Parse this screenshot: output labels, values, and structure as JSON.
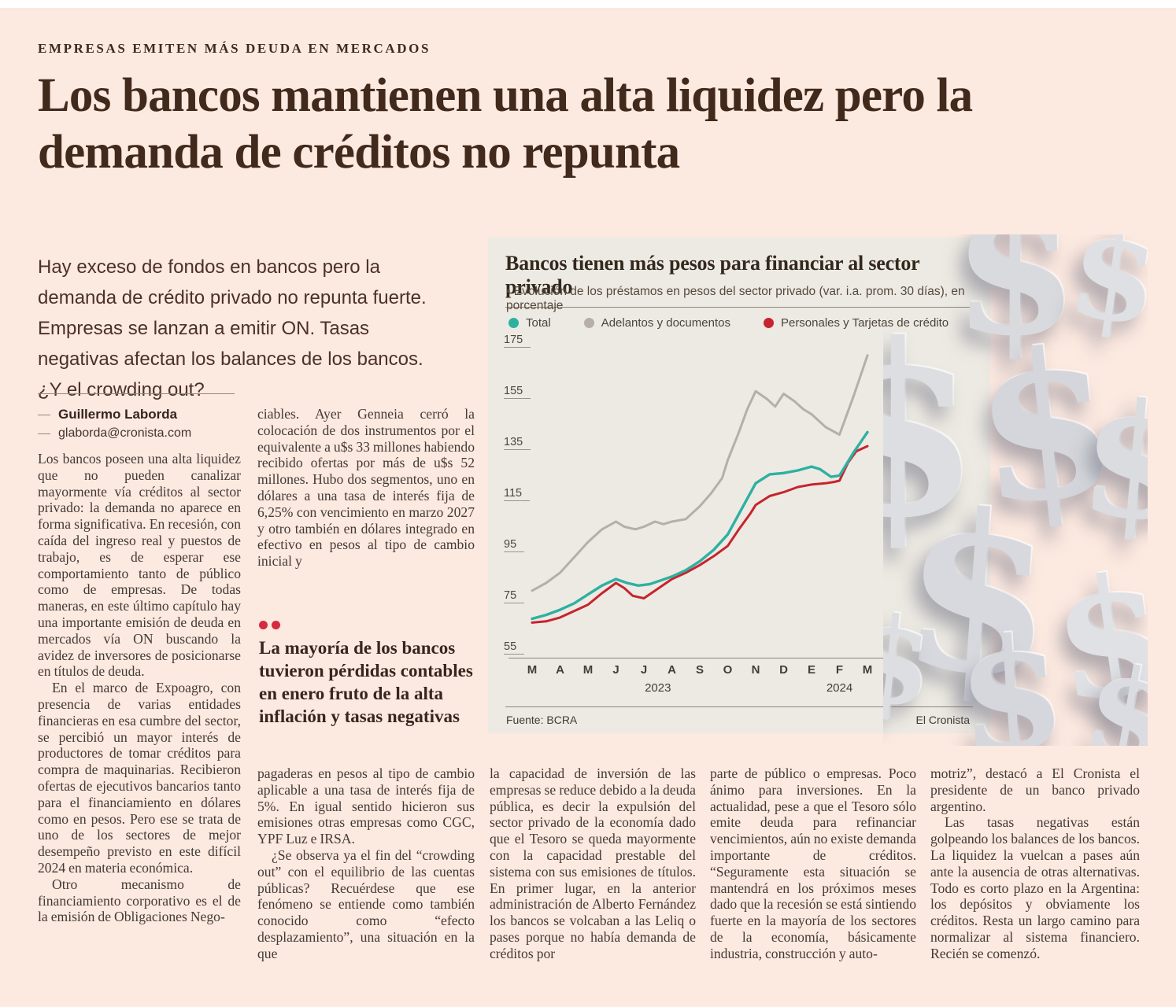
{
  "masthead": {
    "kicker": "EMPRESAS EMITEN MÁS DEUDA EN MERCADOS"
  },
  "headline": "Los bancos mantienen una alta liquidez pero la demanda de créditos no repunta",
  "lede": "Hay exceso de fondos en bancos pero la demanda de crédito privado no repunta fuerte. Empresas se lanzan a emitir ON. Tasas negativas afectan los balances de los bancos. ¿Y el crowding out?",
  "byline": {
    "author": "Guillermo Laborda",
    "email": "glaborda@cronista.com"
  },
  "article": {
    "col1_p1": "Los bancos poseen una alta liquidez que no pueden canalizar mayormente vía créditos al sector privado: la demanda no aparece en forma significativa. En recesión, con caída del ingreso real y puestos de trabajo, es de esperar ese comportamiento tanto de público como de empresas. De todas maneras, en este último capítulo hay una importante emisión de deuda en mercados vía ON buscando la avidez de inversores de posicionarse en títulos de deuda.",
    "col1_p2": "En el marco de Expoagro, con presencia de varias entidades financieras en esa cumbre del sector, se percibió un mayor interés de productores de tomar créditos para compra de maquinarias. Recibieron ofertas de ejecutivos bancarios tanto para el financiamiento en dólares como en pesos. Pero ese se trata de uno de los sectores de mejor desempeño previsto en este difícil 2024 en materia económica.",
    "col1_p3": "Otro mecanismo de financiamiento corporativo es el de la emisión de Obligaciones Nego-",
    "col2_top": "ciables. Ayer Genneia cerró la colocación de dos instrumentos por el equivalente a u$s 33 millones habiendo recibido ofertas por más de u$s 52 millones. Hubo dos segmentos, uno en dólares a una tasa de interés fija de 6,25% con vencimiento en marzo 2027 y otro también en dólares integrado en efectivo en pesos al tipo de cambio inicial y",
    "pull_quote": "La mayoría de los bancos tuvieron pérdidas contables en enero fruto de la alta inflación y tasas negativas",
    "col2_p1": "pagaderas en pesos al tipo de cambio aplicable a una tasa de interés fija de 5%. En igual sentido hicieron sus emisiones otras empresas como CGC, YPF Luz e IRSA.",
    "col2_p2": "¿Se observa ya el fin del “crowding out” con el equilibrio de las cuentas públicas? Recuérdese que ese fenómeno se entiende como también conocido como “efecto desplazamiento”, una situación en la que",
    "col3": "la capacidad de inversión de las empresas se reduce debido a la deuda pública, es decir la expulsión del sector privado de la economía dado que el Tesoro se queda mayormente con la capacidad prestable del sistema con sus emisiones de títulos. En primer lugar, en la anterior administración de Alberto Fernández los bancos se volcaban a las Leliq o pases porque no había demanda de créditos por",
    "col4": "parte de público o empresas. Poco ánimo para inversiones. En la actualidad, pese a que el Tesoro sólo emite deuda para refinanciar vencimientos, aún no existe demanda importante de créditos. “Seguramente esta situación se mantendrá en los próximos meses dado que la recesión se está sintiendo fuerte en la mayoría de los sectores de la economía, básicamente industria, construcción y auto-",
    "col5_p1": "motriz”, destacó a El Cronista el presidente de un banco privado argentino.",
    "col5_p2": "Las tasas negativas están golpeando los balances de los bancos. La liquidez la vuelcan a pases aún ante la ausencia de otras alternativas. Todo es corto plazo en la Argentina: los depósitos y obviamente los créditos. Resta un largo camino para normalizar al sistema financiero. Recién se comenzó."
  },
  "chart_data": {
    "type": "line",
    "title": "Bancos tienen más pesos para financiar al sector privado",
    "subtitle": "• Evolución de los préstamos en pesos del sector privado (var. i.a. prom. 30 días), en porcentaje",
    "x_tick_labels": [
      "M",
      "A",
      "M",
      "J",
      "J",
      "A",
      "S",
      "O",
      "N",
      "D",
      "E",
      "F",
      "M"
    ],
    "year_labels": [
      {
        "text": "2023",
        "month_index": 4.5
      },
      {
        "text": "2024",
        "month_index": 11
      }
    ],
    "ylim": [
      55,
      175
    ],
    "yticks": [
      175,
      155,
      135,
      115,
      95,
      75,
      55
    ],
    "grid": false,
    "legend_position": "top",
    "series": [
      {
        "name": "Total",
        "color": "#2eb0a1",
        "x": [
          0,
          0.5,
          1,
          1.5,
          2,
          2.5,
          3,
          3.4,
          3.8,
          4.2,
          4.6,
          5,
          5.5,
          6,
          6.5,
          7,
          7.4,
          7.8,
          8,
          8.5,
          9,
          9.5,
          10,
          10.3,
          10.7,
          11,
          11.5,
          12
        ],
        "values": [
          69,
          70.5,
          72.5,
          75,
          78.5,
          82,
          84.5,
          83,
          82,
          82.5,
          84,
          85.5,
          88,
          91.5,
          96,
          102,
          110,
          118,
          122,
          125.5,
          126,
          127,
          128.5,
          127.5,
          124.5,
          125,
          134,
          142
        ]
      },
      {
        "name": "Adelantos y documentos",
        "color": "#b6afa7",
        "x": [
          0,
          0.5,
          1,
          1.5,
          2,
          2.5,
          3,
          3.3,
          3.7,
          4,
          4.4,
          4.7,
          5,
          5.5,
          6,
          6.4,
          6.8,
          7,
          7.4,
          7.7,
          8,
          8.4,
          8.7,
          9,
          9.4,
          9.7,
          10,
          10.5,
          11,
          11.5,
          12
        ],
        "values": [
          80,
          83,
          87,
          93,
          99,
          104,
          107,
          105,
          104,
          105,
          107,
          106,
          107,
          108,
          113,
          118,
          124,
          131,
          142,
          151,
          158,
          155,
          152,
          157,
          154,
          151,
          149,
          144,
          141,
          156,
          172
        ]
      },
      {
        "name": "Personales y Tarjetas de crédito",
        "color": "#c6242e",
        "x": [
          0,
          0.5,
          1,
          1.5,
          2,
          2.5,
          3,
          3.3,
          3.6,
          4,
          4.4,
          4.8,
          5,
          5.5,
          6,
          6.5,
          7,
          7.4,
          7.8,
          8,
          8.5,
          9,
          9.5,
          10,
          10.5,
          10.8,
          11,
          11.3,
          11.6,
          12
        ],
        "values": [
          67.5,
          68,
          69.5,
          72,
          74.5,
          79,
          83,
          81,
          78,
          77,
          80,
          83,
          84.5,
          87,
          90,
          93.5,
          97.5,
          104,
          110,
          113.5,
          117,
          118.5,
          120.5,
          121.5,
          122,
          122.5,
          123,
          130,
          134.5,
          136.5
        ]
      }
    ],
    "source": "Fuente: BCRA",
    "credit": "El Cronista"
  },
  "art": {
    "symbol": "$"
  }
}
